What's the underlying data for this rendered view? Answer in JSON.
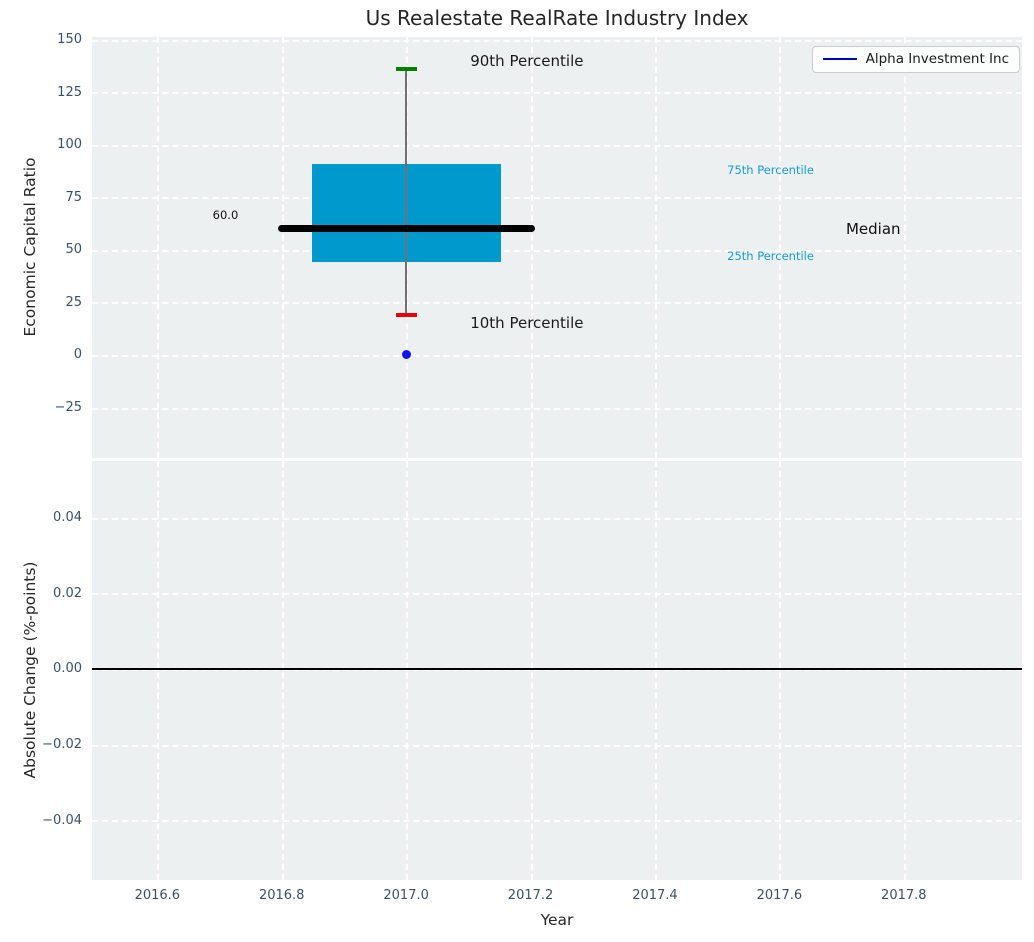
{
  "figure": {
    "title": "Us Realestate RealRate Industry Index",
    "xlabel": "Year",
    "background": "#ffffff",
    "axes_background": "#ecf0f1",
    "grid_color": "#ffffff",
    "tick_label_color": "#3a5068",
    "axis_label_color": "#262626"
  },
  "legend": {
    "label": "Alpha Investment Inc",
    "line_color": "#0000cd"
  },
  "chart_data": [
    {
      "type": "boxplot",
      "title": "Us Realestate RealRate Industry Index",
      "ylabel": "Economic Capital Ratio",
      "xlabel": "Year",
      "xlim": [
        2016.495,
        2017.99
      ],
      "ylim": [
        -49,
        151.2
      ],
      "xticks": [
        2016.6,
        2016.8,
        2017.0,
        2017.2,
        2017.4,
        2017.6,
        2017.8
      ],
      "yticks": [
        150,
        125,
        100,
        75,
        50,
        25,
        0,
        -25
      ],
      "grid": "white-dashed",
      "box": {
        "x": 2017.0,
        "box_half_width": 0.152,
        "median_half_width": 0.2,
        "cap_half_width": 0.017,
        "p10": 19,
        "p25": 44,
        "median": 60,
        "p75": 91,
        "p90": 136,
        "box_color": "#0099cd",
        "median_color": "#000000",
        "whisker_color": "#707070",
        "cap_top_color": "#008000",
        "cap_bottom_color": "#e8000b"
      },
      "marker": {
        "x": 2017.0,
        "y": 0,
        "color": "#1414ef",
        "series_name": "Alpha Investment Inc"
      },
      "annotations": [
        {
          "text": "90th Percentile",
          "x": 2017.103,
          "y": 140,
          "color": "#1a1a1a",
          "size": 15
        },
        {
          "text": "10th Percentile",
          "x": 2017.103,
          "y": 15,
          "color": "#1a1a1a",
          "size": 15
        },
        {
          "text": "75th Percentile",
          "x": 2017.516,
          "y": 88,
          "color": "#189ad2",
          "size": 11.5
        },
        {
          "text": "25th Percentile",
          "x": 2017.516,
          "y": 47,
          "color": "#189ad2",
          "size": 11.5
        },
        {
          "text": "Median",
          "x": 2017.707,
          "y": 60,
          "color": "#111111",
          "size": 15
        },
        {
          "text": "60.0",
          "x": 2016.689,
          "y": 66.5,
          "color": "#111111",
          "size": 11.5
        }
      ]
    },
    {
      "type": "line",
      "ylabel": "Absolute Change (%-points)",
      "xlim": [
        2016.495,
        2017.99
      ],
      "ylim": [
        -0.0558,
        0.055
      ],
      "xticks": [
        2016.6,
        2016.8,
        2017.0,
        2017.2,
        2017.4,
        2017.6,
        2017.8
      ],
      "yticks": [
        0.04,
        0.02,
        0,
        -0.02,
        -0.04
      ],
      "zero_line_y": 0,
      "zero_line_color": "#000000"
    }
  ]
}
